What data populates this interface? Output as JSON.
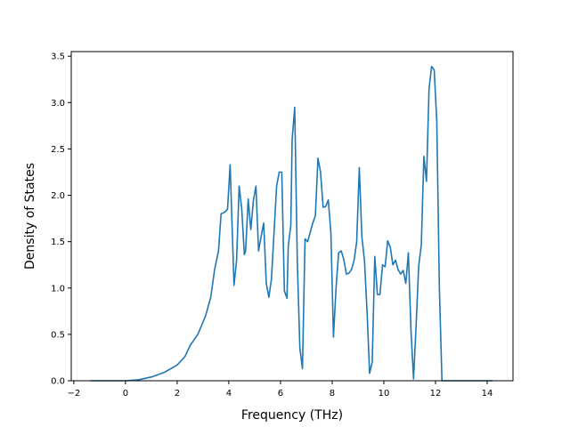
{
  "chart_data": {
    "type": "line",
    "title": "",
    "xlabel": "Frequency (THz)",
    "ylabel": "Density of States",
    "xlim": [
      -2.1,
      15.0
    ],
    "ylim": [
      0.0,
      3.55
    ],
    "xticks": [
      -2,
      0,
      2,
      4,
      6,
      8,
      10,
      12,
      14
    ],
    "xtick_labels": [
      "−2",
      "0",
      "2",
      "4",
      "6",
      "8",
      "10",
      "12",
      "14"
    ],
    "yticks": [
      0.0,
      0.5,
      1.0,
      1.5,
      2.0,
      2.5,
      3.0,
      3.5
    ],
    "ytick_labels": [
      "0.0",
      "0.5",
      "1.0",
      "1.5",
      "2.0",
      "2.5",
      "3.0",
      "3.5"
    ],
    "grid": false,
    "legend": "none",
    "series": [
      {
        "color": "#1f77b4",
        "x": [
          -1.35,
          0.0,
          0.5,
          1.0,
          1.5,
          2.0,
          2.3,
          2.5,
          2.8,
          3.1,
          3.3,
          3.45,
          3.6,
          3.7,
          3.85,
          3.95,
          4.05,
          4.2,
          4.3,
          4.4,
          4.5,
          4.6,
          4.65,
          4.75,
          4.85,
          4.95,
          5.05,
          5.15,
          5.3,
          5.35,
          5.45,
          5.55,
          5.65,
          5.75,
          5.85,
          5.95,
          6.05,
          6.15,
          6.25,
          6.3,
          6.4,
          6.45,
          6.55,
          6.65,
          6.75,
          6.85,
          6.95,
          7.05,
          7.15,
          7.25,
          7.35,
          7.45,
          7.55,
          7.65,
          7.75,
          7.85,
          7.95,
          8.05,
          8.15,
          8.25,
          8.35,
          8.45,
          8.55,
          8.65,
          8.75,
          8.85,
          8.95,
          9.05,
          9.15,
          9.25,
          9.35,
          9.45,
          9.55,
          9.65,
          9.75,
          9.85,
          9.95,
          10.05,
          10.15,
          10.25,
          10.35,
          10.45,
          10.55,
          10.65,
          10.75,
          10.85,
          10.95,
          11.05,
          11.15,
          11.25,
          11.35,
          11.45,
          11.55,
          11.65,
          11.75,
          11.85,
          11.95,
          12.05,
          12.15,
          12.25,
          12.35,
          12.45,
          12.55,
          12.65,
          12.75,
          12.85,
          12.95,
          13.05,
          13.2,
          13.6,
          14.2
        ],
        "values": [
          0.0,
          0.0,
          0.01,
          0.04,
          0.09,
          0.17,
          0.26,
          0.38,
          0.5,
          0.7,
          0.9,
          1.2,
          1.4,
          1.8,
          1.82,
          1.85,
          2.33,
          1.03,
          1.3,
          2.1,
          1.85,
          1.36,
          1.4,
          1.96,
          1.63,
          1.94,
          2.1,
          1.4,
          1.63,
          1.7,
          1.05,
          0.9,
          1.1,
          1.6,
          2.1,
          2.25,
          2.25,
          0.97,
          0.89,
          1.45,
          1.68,
          2.6,
          2.95,
          1.3,
          0.35,
          0.13,
          1.53,
          1.5,
          1.6,
          1.7,
          1.78,
          2.4,
          2.25,
          1.87,
          1.88,
          1.95,
          1.6,
          0.47,
          1.0,
          1.38,
          1.4,
          1.31,
          1.15,
          1.16,
          1.2,
          1.3,
          1.5,
          2.3,
          1.55,
          1.3,
          0.75,
          0.08,
          0.2,
          1.34,
          0.93,
          0.93,
          1.25,
          1.23,
          1.51,
          1.44,
          1.25,
          1.3,
          1.2,
          1.15,
          1.19,
          1.05,
          1.38,
          0.55,
          0.02,
          0.6,
          1.24,
          1.46,
          2.42,
          2.15,
          3.15,
          3.39,
          3.35,
          2.8,
          1.0,
          0.0,
          0.0,
          0.0,
          0.0,
          0.0,
          0.0,
          0.0,
          0.0,
          0.0,
          0.0,
          0.0,
          0.0
        ]
      }
    ]
  }
}
